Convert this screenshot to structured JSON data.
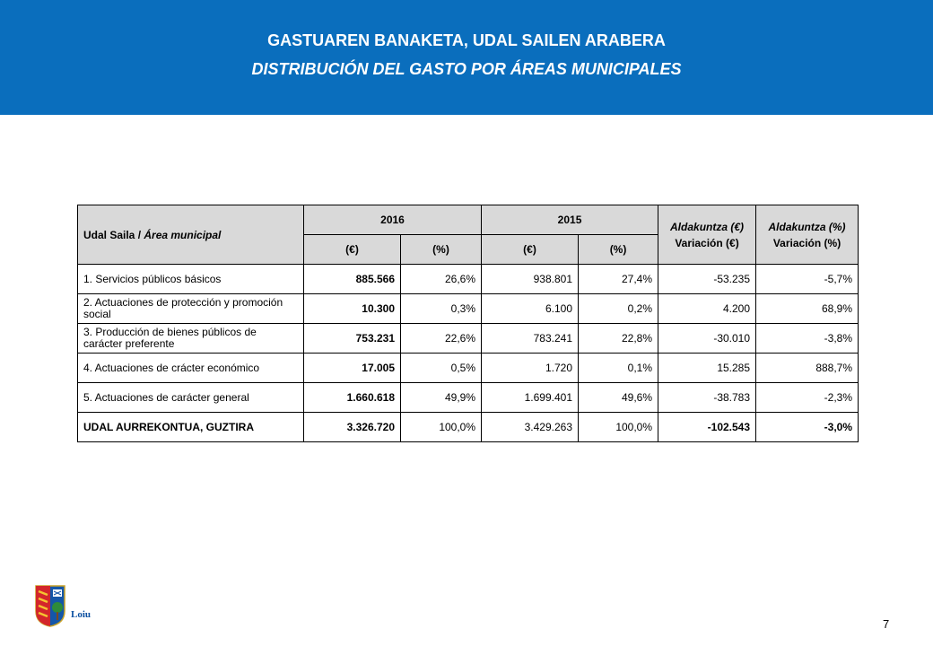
{
  "header": {
    "title": "GASTUAREN BANAKETA, UDAL SAILEN ARABERA",
    "subtitle": "DISTRIBUCIÓN DEL GASTO POR ÁREAS MUNICIPALES"
  },
  "table": {
    "area_header_eu": "Udal Saila / ",
    "area_header_es": "Área municipal",
    "year_2016": "2016",
    "year_2015": "2015",
    "unit_eur": "(€)",
    "unit_pct": "(%)",
    "var_eur_eu": "Aldakuntza (€)",
    "var_eur_es": "Variación (€)",
    "var_pct_eu": "Aldakuntza (%)",
    "var_pct_es": "Variación (%)",
    "rows": [
      {
        "label": "1. Servicios públicos básicos",
        "v2016": "885.566",
        "p2016": "26,6%",
        "v2015": "938.801",
        "p2015": "27,4%",
        "var_eur": "-53.235",
        "var_pct": "-5,7%"
      },
      {
        "label": "2. Actuaciones de protección y promoción social",
        "v2016": "10.300",
        "p2016": "0,3%",
        "v2015": "6.100",
        "p2015": "0,2%",
        "var_eur": "4.200",
        "var_pct": "68,9%"
      },
      {
        "label": "3. Producción de bienes públicos de carácter preferente",
        "v2016": "753.231",
        "p2016": "22,6%",
        "v2015": "783.241",
        "p2015": "22,8%",
        "var_eur": "-30.010",
        "var_pct": "-3,8%"
      },
      {
        "label": "4. Actuaciones de crácter económico",
        "v2016": "17.005",
        "p2016": "0,5%",
        "v2015": "1.720",
        "p2015": "0,1%",
        "var_eur": "15.285",
        "var_pct": "888,7%"
      },
      {
        "label": "5. Actuaciones de carácter general",
        "v2016": "1.660.618",
        "p2016": "49,9%",
        "v2015": "1.699.401",
        "p2015": "49,6%",
        "var_eur": "-38.783",
        "var_pct": "-2,3%"
      }
    ],
    "total": {
      "label": "UDAL AURREKONTUA, GUZTIRA",
      "v2016": "3.326.720",
      "p2016": "100,0%",
      "v2015": "3.429.263",
      "p2015": "100,0%",
      "var_eur": "-102.543",
      "var_pct": "-3,0%"
    }
  },
  "footer": {
    "logo_text": "Loiu",
    "logo_icon": "coat-of-arms-icon",
    "page_number": "7"
  },
  "colors": {
    "banner": "#0a6ebd",
    "header_cell": "#d9d9d9"
  }
}
